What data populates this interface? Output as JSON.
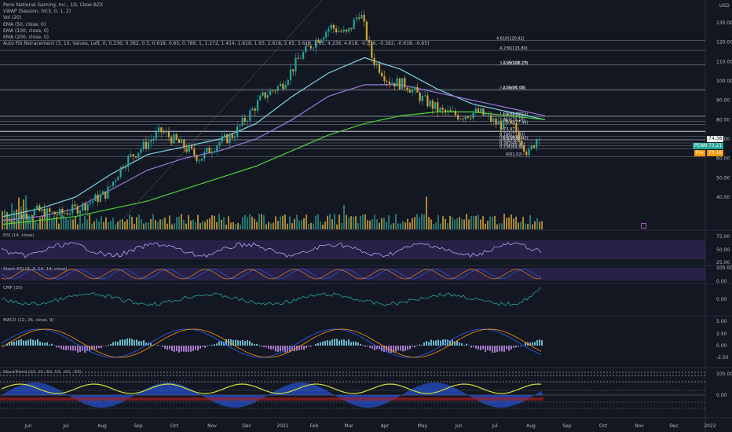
{
  "title_legend": [
    "Penn National Gaming, Inc., 1D, Cboe BZX",
    "VWAP (Session, hlc3, 0, 1, 2)",
    "Vol (20)",
    "EMA (50, close, 0)",
    "EMA (100, close, 0)",
    "EMA (200, close, 0)",
    "Auto Fib Retracement (3, 10, Values, Left, 0, 0.236, 0.382, 0.5, 0.618, 0.65, 0.786, 1, 1.272, 1.414, 1.618, 1.65, 2.618, 2.65, 3.618, 3.65, 4.236, 4.618, -0.236, -0.382, -0.618, -0.65)"
  ],
  "currency_label": "USD",
  "price_axis": [
    "130.00",
    "120.00",
    "110.00",
    "100.00",
    "90.00",
    "80.00",
    "70.00",
    "60.00",
    "50.00",
    "40.00"
  ],
  "price_tags": {
    "upper": "74.38",
    "symbol": "PENN",
    "symbol_value": "73.21",
    "pre": "Pre",
    "pre_value": "73.16"
  },
  "fib_labels": [
    "4.618(120.82)",
    "4.236(115.80)",
    "3.618(108.17)",
    "3.65(108.29)",
    "2.618(95.18)",
    "2.65(95.63)",
    "1.65(81.89)",
    "1.618(81.58)",
    "1.414(79.18)",
    "1.272(77.46)",
    "1(73.97)",
    "0.786(71.43)",
    "0.65(69.81)",
    "0.618(69.40)",
    "0.5(67.97)",
    "0.382(66.57)",
    "0.236(64.86)",
    "0(61.02)"
  ],
  "pane_labels": {
    "rsi": "RSI (14, close)",
    "stoch": "Stoch RSI (3, 3, 14, 14, close)",
    "cmf": "CMF (20)",
    "macd": "MACD (12, 26, close, 9)",
    "wt": "WaveTrend (10, 21, 60, 53, -60, -53)"
  },
  "rsi_axis": [
    "75.00",
    "50.00",
    "25.00"
  ],
  "stoch_axis": [
    "100.00",
    "0.00"
  ],
  "cmf_axis": [
    "0.00"
  ],
  "macd_axis": [
    "5.00",
    "2.50",
    "0.00",
    "-2.50"
  ],
  "wt_axis": [
    "100.00",
    "0.00"
  ],
  "time_axis": [
    "Jun",
    "Jul",
    "Aug",
    "Sep",
    "Oct",
    "Nov",
    "Dec",
    "2021",
    "Feb",
    "Mar",
    "Apr",
    "May",
    "Jun",
    "Jul",
    "Aug",
    "Sep",
    "Oct",
    "Nov",
    "Dec",
    "2022"
  ],
  "colors": {
    "background": "#131722",
    "candle_up": "#26a69a",
    "candle_down": "#d1a23a",
    "ema50": "#7ed4e6",
    "ema100": "#9b7ad9",
    "ema200": "#4cd137",
    "rsi_band": "#3a2a66",
    "macd_line": "#2962ff",
    "signal_line": "#ff9800"
  },
  "chart_data": {
    "type": "line",
    "title": "",
    "xlabel": "",
    "ylabel": "",
    "ylim": [
      30,
      136
    ],
    "x_range": [
      "2020-06",
      "2021-08"
    ],
    "price_path": [
      [
        "2020-05-20",
        28
      ],
      [
        "2020-06-10",
        33
      ],
      [
        "2020-07-01",
        31
      ],
      [
        "2020-07-20",
        35
      ],
      [
        "2020-08-10",
        42
      ],
      [
        "2020-08-25",
        58
      ],
      [
        "2020-09-10",
        66
      ],
      [
        "2020-09-25",
        74
      ],
      [
        "2020-10-10",
        68
      ],
      [
        "2020-10-28",
        60
      ],
      [
        "2020-11-12",
        68
      ],
      [
        "2020-11-25",
        72
      ],
      [
        "2020-12-05",
        80
      ],
      [
        "2020-12-20",
        92
      ],
      [
        "2021-01-05",
        98
      ],
      [
        "2021-01-20",
        112
      ],
      [
        "2021-02-01",
        120
      ],
      [
        "2021-02-15",
        128
      ],
      [
        "2021-03-01",
        124
      ],
      [
        "2021-03-12",
        136
      ],
      [
        "2021-03-22",
        112
      ],
      [
        "2021-04-05",
        100
      ],
      [
        "2021-04-20",
        98
      ],
      [
        "2021-05-05",
        90
      ],
      [
        "2021-05-20",
        84
      ],
      [
        "2021-06-05",
        82
      ],
      [
        "2021-06-20",
        84
      ],
      [
        "2021-07-05",
        78
      ],
      [
        "2021-07-20",
        76
      ],
      [
        "2021-08-01",
        62
      ],
      [
        "2021-08-10",
        73
      ]
    ],
    "series": [
      {
        "name": "EMA (50, close, 0)",
        "values": [
          30,
          34,
          40,
          52,
          62,
          66,
          70,
          78,
          92,
          104,
          112,
          106,
          96,
          88,
          84,
          80
        ]
      },
      {
        "name": "EMA (100, close, 0)",
        "values": [
          28,
          30,
          34,
          44,
          54,
          60,
          64,
          70,
          80,
          92,
          98,
          98,
          94,
          90,
          86,
          82
        ]
      },
      {
        "name": "EMA (200, close, 0)",
        "values": [
          26,
          28,
          30,
          34,
          38,
          44,
          50,
          56,
          64,
          72,
          78,
          82,
          84,
          84,
          82,
          80
        ]
      }
    ],
    "grid": true,
    "legend": "top-left"
  }
}
